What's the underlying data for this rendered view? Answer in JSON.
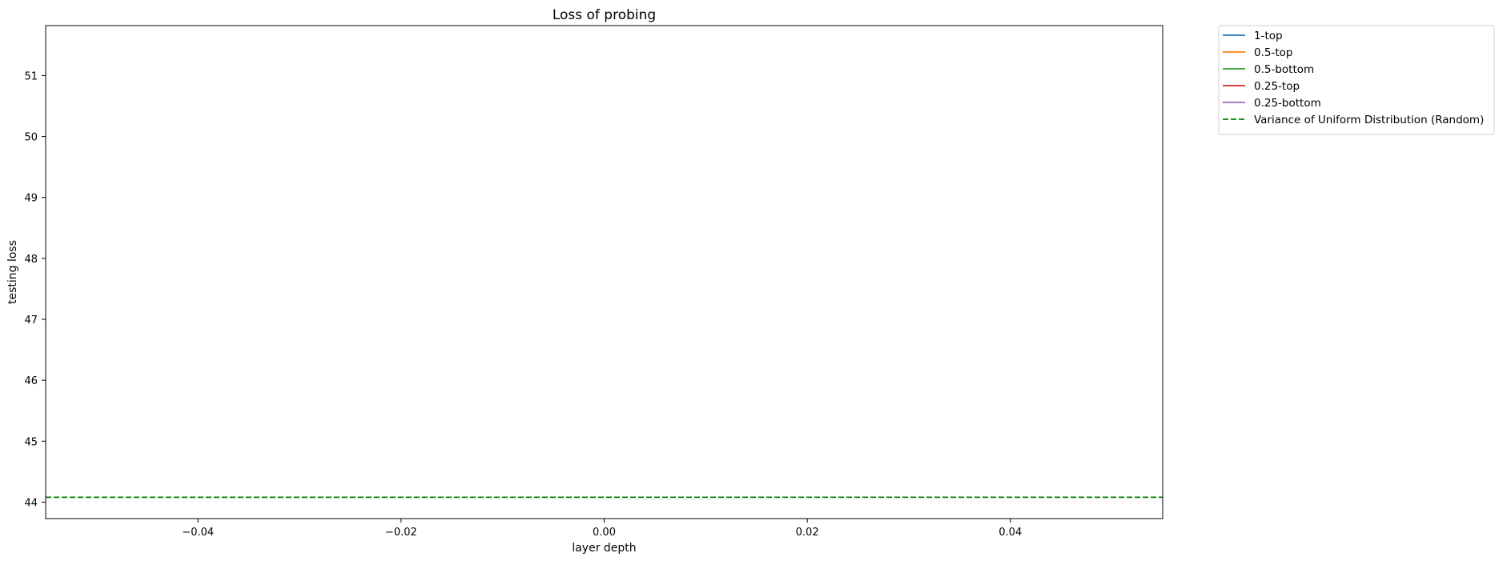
{
  "chart_data": {
    "type": "line",
    "title": "Loss of probing",
    "xlabel": "layer depth",
    "ylabel": "testing loss",
    "xlim": [
      -0.055,
      0.055
    ],
    "ylim": [
      43.73,
      51.82
    ],
    "x_ticks": [
      -0.04,
      -0.02,
      0.0,
      0.02,
      0.04
    ],
    "x_tick_labels": [
      "−0.04",
      "−0.02",
      "0.00",
      "0.02",
      "0.04"
    ],
    "y_ticks": [
      44,
      45,
      46,
      47,
      48,
      49,
      50,
      51
    ],
    "y_tick_labels": [
      "44",
      "45",
      "46",
      "47",
      "48",
      "49",
      "50",
      "51"
    ],
    "grid": false,
    "legend_placement": "outside upper right",
    "series": [
      {
        "name": "1-top",
        "color": "#1f77b4",
        "style": "solid",
        "x": [],
        "y": []
      },
      {
        "name": "0.5-top",
        "color": "#ff7f0e",
        "style": "solid",
        "x": [],
        "y": []
      },
      {
        "name": "0.5-bottom",
        "color": "#2ca02c",
        "style": "solid",
        "x": [],
        "y": []
      },
      {
        "name": "0.25-top",
        "color": "#d62728",
        "style": "solid",
        "x": [],
        "y": []
      },
      {
        "name": "0.25-bottom",
        "color": "#9467bd",
        "style": "solid",
        "x": [],
        "y": []
      }
    ],
    "reference_lines": [
      {
        "name": "Variance of Uniform Distribution (Random)",
        "color": "#008000",
        "style": "dashed",
        "y": 44.08
      }
    ]
  }
}
